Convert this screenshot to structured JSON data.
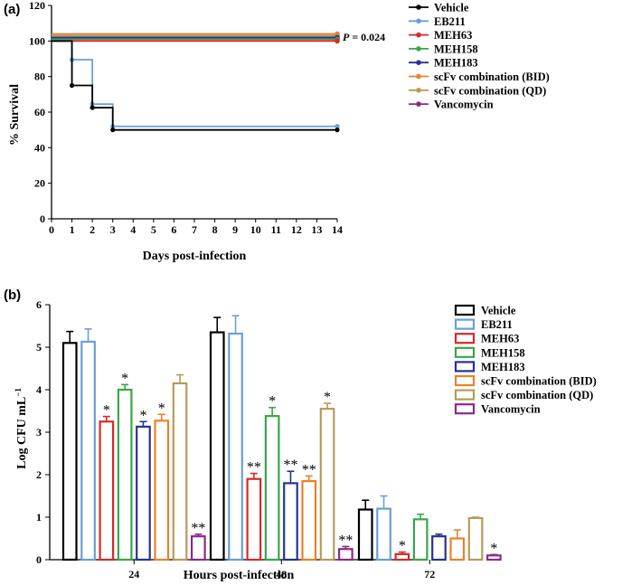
{
  "colors": {
    "Vehicle": "#000000",
    "EB211": "#6a9fd4",
    "MEH63": "#d62a2a",
    "MEH158": "#3aa64a",
    "MEH183": "#26338f",
    "scFv combination (BID)": "#e8822c",
    "scFv combination (QD)": "#b89a5a",
    "Vancomycin": "#8a2a8a"
  },
  "chart_data": [
    {
      "type": "line",
      "panel_label": "(a)",
      "xlabel": "Days post-infection",
      "ylabel": "% Survival",
      "xlim": [
        0,
        14
      ],
      "ylim": [
        0,
        120
      ],
      "x_ticks": [
        "0",
        "1",
        "2",
        "3",
        "4",
        "5",
        "6",
        "7",
        "8",
        "9",
        "10",
        "11",
        "12",
        "13",
        "14"
      ],
      "y_ticks": [
        "0",
        "20",
        "40",
        "60",
        "80",
        "100",
        "120"
      ],
      "annotation": {
        "label": "P",
        "text": " = 0.024"
      },
      "legend": [
        "Vehicle",
        "EB211",
        "MEH63",
        "MEH158",
        "MEH183",
        "scFv combination (BID)",
        "scFv combination (QD)",
        "Vancomycin"
      ],
      "series": [
        {
          "name": "Vehicle",
          "x": [
            0,
            1,
            2,
            3,
            14
          ],
          "y": [
            100,
            75,
            62.5,
            50,
            50
          ]
        },
        {
          "name": "EB211",
          "x": [
            0,
            1,
            2,
            3,
            14
          ],
          "y": [
            100,
            89.5,
            64.5,
            52,
            52
          ]
        },
        {
          "name": "MEH63",
          "x": [
            0,
            14
          ],
          "y": [
            100,
            100
          ]
        },
        {
          "name": "MEH158",
          "x": [
            0,
            14
          ],
          "y": [
            101,
            101
          ]
        },
        {
          "name": "MEH183",
          "x": [
            0,
            14
          ],
          "y": [
            102,
            102
          ]
        },
        {
          "name": "scFv combination (BID)",
          "x": [
            0,
            14
          ],
          "y": [
            104,
            104
          ]
        },
        {
          "name": "scFv combination (QD)",
          "x": [
            0,
            14
          ],
          "y": [
            103,
            103
          ]
        },
        {
          "name": "Vancomycin",
          "x": [
            0,
            14
          ],
          "y": [
            101.5,
            101.5
          ]
        }
      ]
    },
    {
      "type": "bar",
      "panel_label": "(b)",
      "xlabel": "Hours post-infection",
      "ylabel": "Log CFU mL",
      "ylabel_superscript": "−1",
      "ylim": [
        0,
        6
      ],
      "y_ticks": [
        "0",
        "1",
        "2",
        "3",
        "4",
        "5",
        "6"
      ],
      "categories": [
        "24",
        "48",
        "72"
      ],
      "legend": [
        "Vehicle",
        "EB211",
        "MEH63",
        "MEH158",
        "MEH183",
        "scFv combination (BID)",
        "scFv combination (QD)",
        "Vancomycin"
      ],
      "series": [
        {
          "name": "Vehicle",
          "values": [
            5.1,
            5.35,
            1.18
          ],
          "errors": [
            0.27,
            0.35,
            0.22
          ],
          "marks": [
            "",
            "",
            ""
          ]
        },
        {
          "name": "EB211",
          "values": [
            5.13,
            5.32,
            1.2
          ],
          "errors": [
            0.3,
            0.42,
            0.3
          ],
          "marks": [
            "",
            "",
            ""
          ]
        },
        {
          "name": "MEH63",
          "values": [
            3.25,
            1.9,
            0.13
          ],
          "errors": [
            0.12,
            0.13,
            0.05
          ],
          "marks": [
            "*",
            "**",
            "*"
          ]
        },
        {
          "name": "MEH158",
          "values": [
            4.0,
            3.38,
            0.95
          ],
          "errors": [
            0.12,
            0.2,
            0.12
          ],
          "marks": [
            "*",
            "*",
            ""
          ]
        },
        {
          "name": "MEH183",
          "values": [
            3.13,
            1.8,
            0.55
          ],
          "errors": [
            0.12,
            0.28,
            0.05
          ],
          "marks": [
            "*",
            "**",
            ""
          ]
        },
        {
          "name": "scFv combination (BID)",
          "values": [
            3.27,
            1.85,
            0.5
          ],
          "errors": [
            0.15,
            0.12,
            0.2
          ],
          "marks": [
            "*",
            "**",
            ""
          ]
        },
        {
          "name": "scFv combination (QD)",
          "values": [
            4.15,
            3.55,
            0.98
          ],
          "errors": [
            0.2,
            0.13,
            0.02
          ],
          "marks": [
            "",
            "*",
            ""
          ]
        },
        {
          "name": "Vancomycin",
          "values": [
            0.55,
            0.25,
            0.1
          ],
          "errors": [
            0.05,
            0.06,
            0.02
          ],
          "marks": [
            "**",
            "**",
            "*"
          ]
        }
      ]
    }
  ]
}
